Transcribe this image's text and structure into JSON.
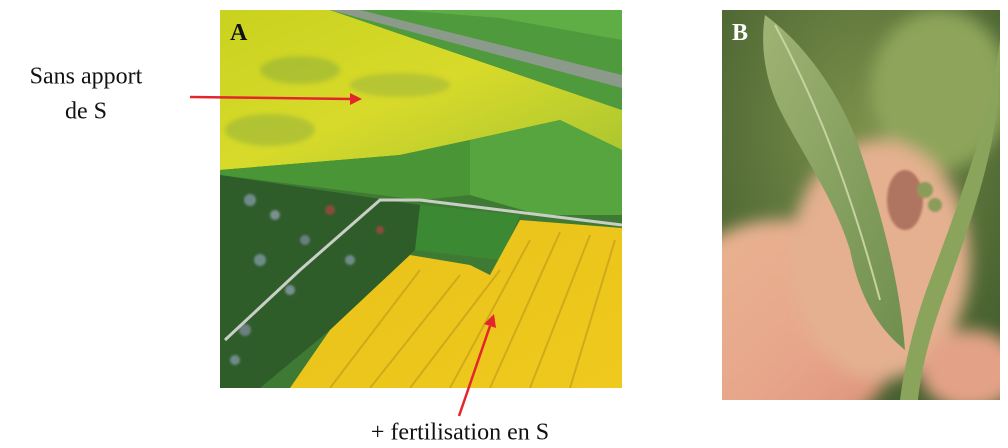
{
  "panels": [
    {
      "label": "A"
    },
    {
      "label": "B"
    }
  ],
  "annotations": [
    {
      "lines": [
        "Sans apport",
        "de S"
      ]
    },
    {
      "text": "+ fertilisation en S"
    }
  ]
}
